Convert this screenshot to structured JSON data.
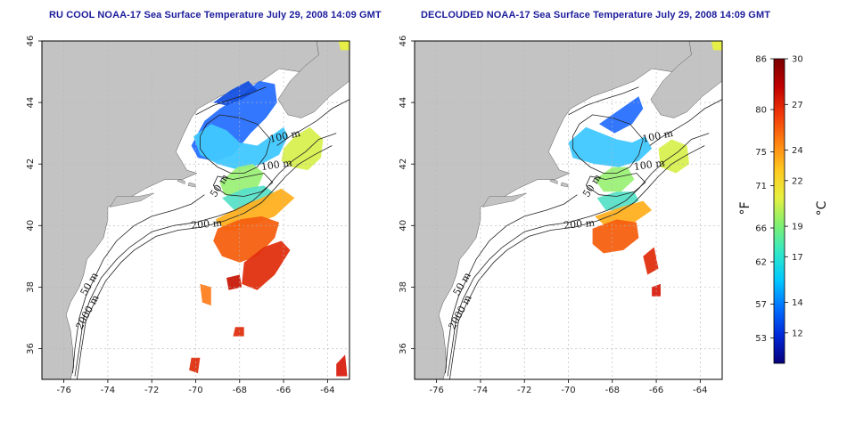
{
  "panels": [
    {
      "title": "RU COOL NOAA-17 Sea Surface Temperature July 29, 2008 14:09 GMT",
      "contour_labels": [
        "100 m",
        "100 m",
        "50 m",
        "200 m",
        "50 m",
        "2000 m"
      ]
    },
    {
      "title": "DECLOUDED NOAA-17 Sea Surface Temperature July 29, 2008 14:09 GMT",
      "contour_labels": [
        "100 m",
        "100 m",
        "50 m",
        "200 m",
        "50 m",
        "2000 m"
      ]
    }
  ],
  "axes": {
    "x_ticks": [
      "-76",
      "-74",
      "-72",
      "-70",
      "-68",
      "-66",
      "-64"
    ],
    "y_ticks": [
      "36",
      "38",
      "40",
      "42",
      "44",
      "46"
    ],
    "lon_range": [
      -77,
      -63
    ],
    "lat_range": [
      35,
      46
    ]
  },
  "colorbar": {
    "fahrenheit_ticks": [
      "53",
      "57",
      "62",
      "66",
      "71",
      "75",
      "80",
      "86"
    ],
    "celsius_ticks": [
      "12",
      "14",
      "17",
      "19",
      "22",
      "24",
      "27",
      "30"
    ],
    "fahrenheit_label": "°F",
    "celsius_label": "°C",
    "colors": [
      "#08007a",
      "#0028d8",
      "#0070ff",
      "#00c8ff",
      "#30e8c8",
      "#80f070",
      "#e8f040",
      "#ffc820",
      "#ff8010",
      "#f03808",
      "#c00000",
      "#7a0000"
    ]
  },
  "colors": {
    "land": "#c3c3c3",
    "ocean": "#ffffff",
    "contour": "#222222",
    "grid": "#b5b5b5"
  }
}
